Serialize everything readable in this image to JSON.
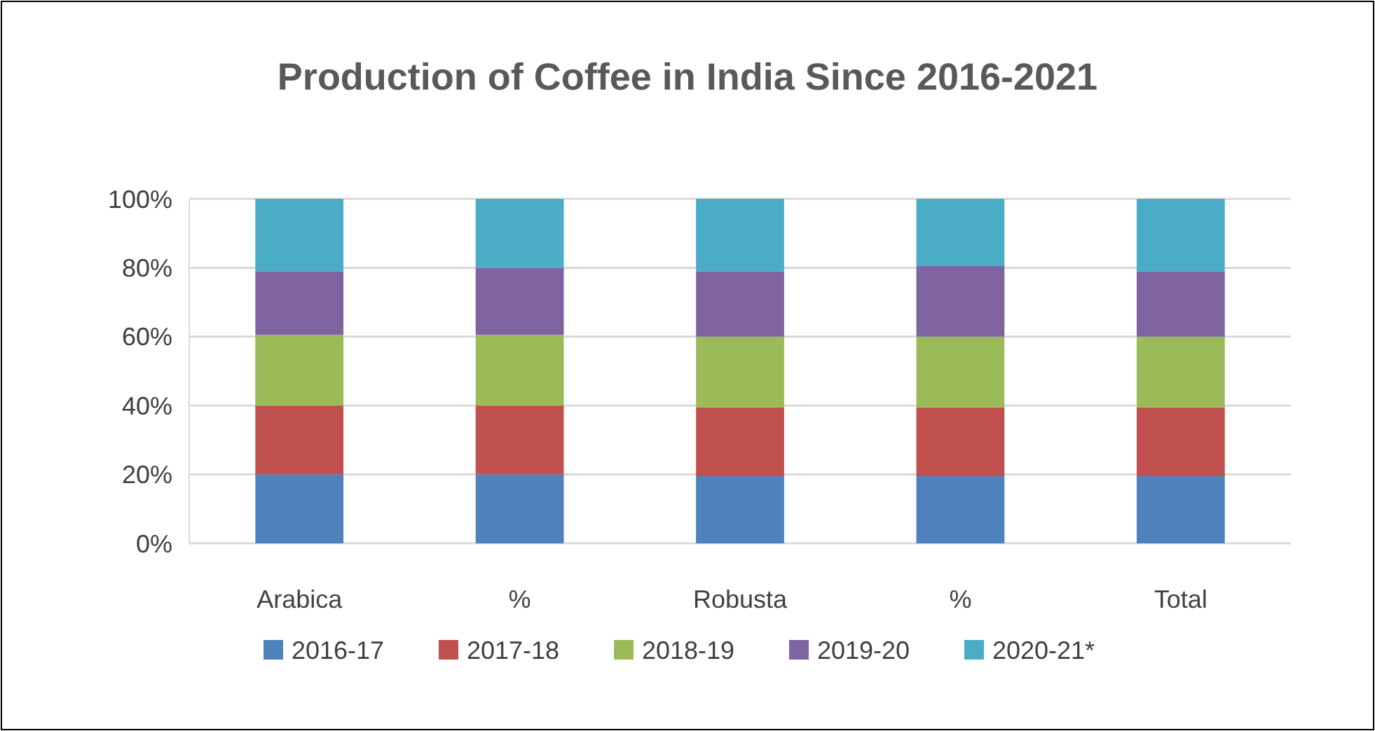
{
  "chart_data": {
    "type": "bar",
    "title": "Production of Coffee in India Since 2016-2021",
    "categories": [
      "Arabica",
      "%",
      "Robusta",
      "%",
      "Total"
    ],
    "stacked": true,
    "series": [
      {
        "name": "2016-17",
        "color": "#4f81bd",
        "values": [
          20,
          20,
          19.5,
          19.5,
          19.5
        ]
      },
      {
        "name": "2017-18",
        "color": "#c0504d",
        "values": [
          20,
          20,
          20,
          20,
          20
        ]
      },
      {
        "name": "2018-19",
        "color": "#9bbb59",
        "values": [
          20.5,
          20.5,
          20.5,
          20.5,
          20.5
        ]
      },
      {
        "name": "2019-20",
        "color": "#8064a2",
        "values": [
          18.5,
          19.5,
          19,
          20.5,
          19
        ]
      },
      {
        "name": "2020-21*",
        "color": "#4bacc6",
        "values": [
          21,
          20,
          21,
          19.5,
          21
        ]
      }
    ],
    "ylim": [
      0,
      100
    ],
    "yticks": [
      {
        "value": 0,
        "label": "0%"
      },
      {
        "value": 20,
        "label": "20%"
      },
      {
        "value": 40,
        "label": "40%"
      },
      {
        "value": 60,
        "label": "60%"
      },
      {
        "value": 80,
        "label": "80%"
      },
      {
        "value": 100,
        "label": "100%"
      }
    ],
    "grid": true,
    "legend": "bottom"
  }
}
